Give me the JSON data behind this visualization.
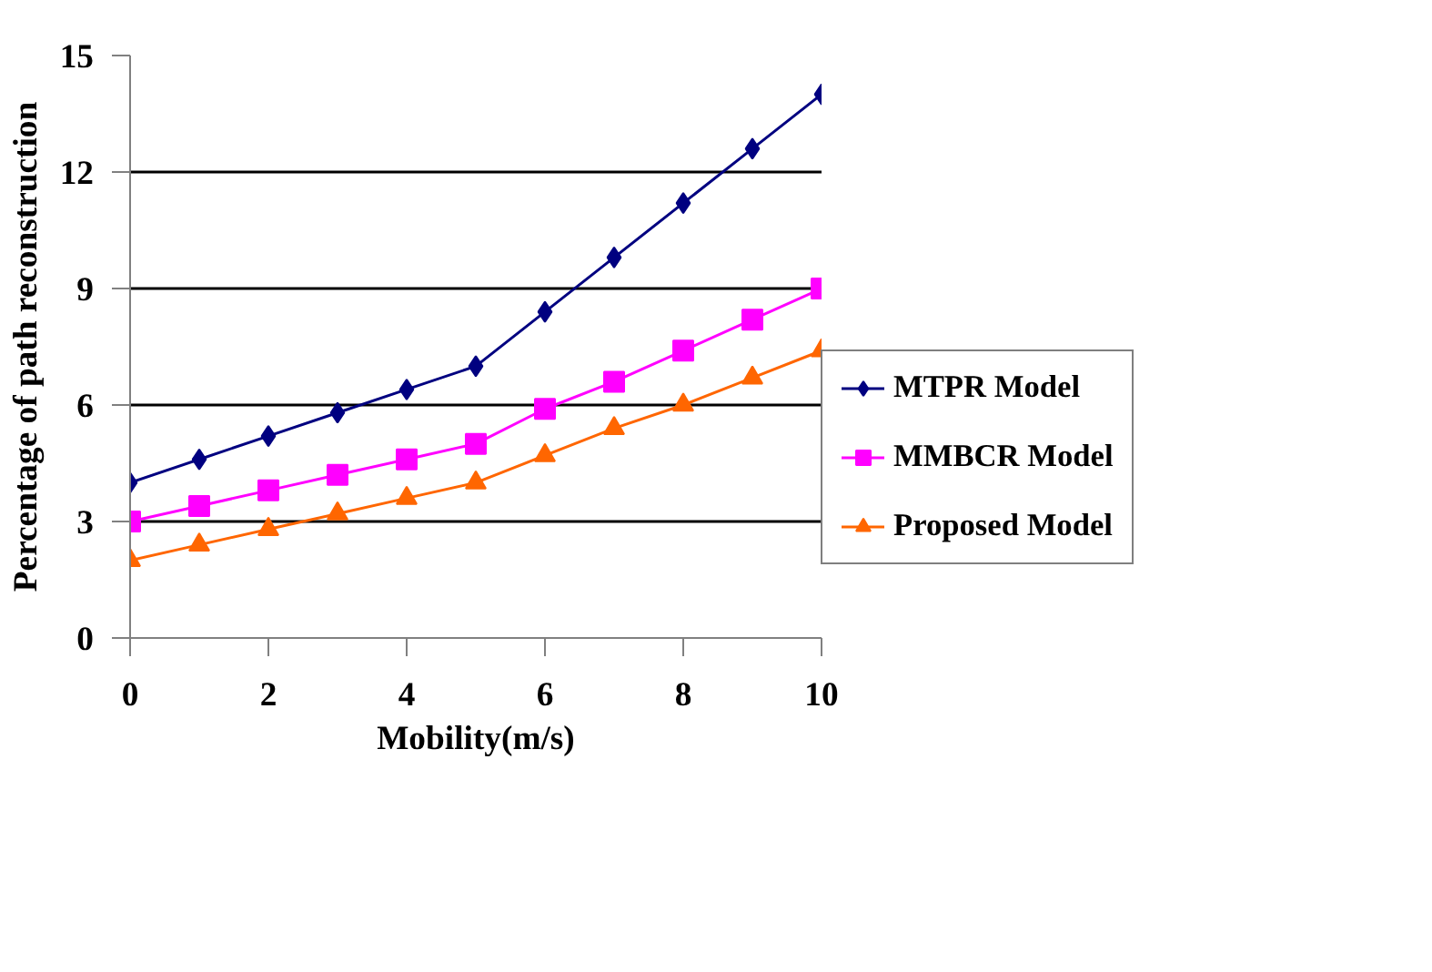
{
  "chart_data": {
    "type": "line",
    "xlabel": "Mobility(m/s)",
    "ylabel": "Percentage of path reconstruction",
    "x": [
      0,
      1,
      2,
      3,
      4,
      5,
      6,
      7,
      8,
      9,
      10
    ],
    "series": [
      {
        "name": "MTPR Model",
        "color": "#000080",
        "marker": "diamond",
        "values": [
          4.0,
          4.6,
          5.2,
          5.8,
          6.4,
          7.0,
          8.4,
          9.8,
          11.2,
          12.6,
          14.0
        ]
      },
      {
        "name": "MMBCR Model",
        "color": "#ff00ff",
        "marker": "square",
        "values": [
          3.0,
          3.4,
          3.8,
          4.2,
          4.6,
          5.0,
          5.9,
          6.6,
          7.4,
          8.2,
          9.0
        ]
      },
      {
        "name": "Proposed Model",
        "color": "#ff6600",
        "marker": "triangle",
        "values": [
          2.0,
          2.4,
          2.8,
          3.2,
          3.6,
          4.0,
          4.7,
          5.4,
          6.0,
          6.7,
          7.4
        ]
      }
    ],
    "xlim": [
      0,
      10
    ],
    "xticks": [
      0,
      2,
      4,
      6,
      8,
      10
    ],
    "ylim": [
      0,
      15
    ],
    "yticks": [
      0,
      3,
      6,
      9,
      12,
      15
    ],
    "grid": "y",
    "legend": "right",
    "line_style": "solid"
  }
}
